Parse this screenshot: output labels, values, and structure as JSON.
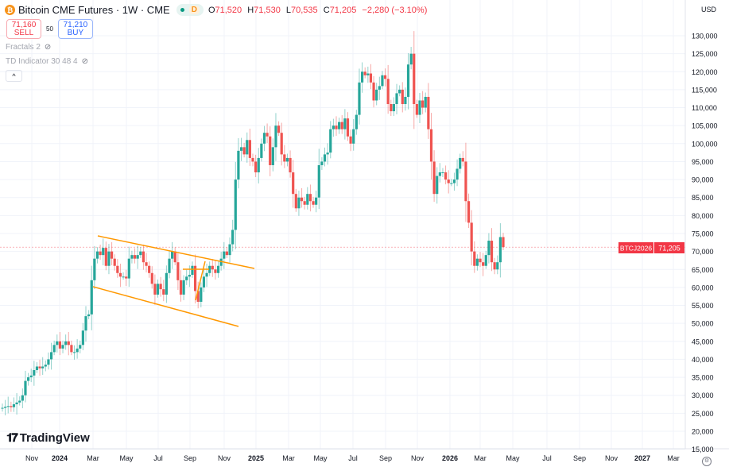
{
  "header": {
    "symbol_icon": "bitcoin-icon",
    "title": "Bitcoin CME Futures · 1W · CME",
    "badge_letter": "D",
    "o_label": "O",
    "o": "71,520",
    "h_label": "H",
    "h": "71,530",
    "l_label": "L",
    "l": "70,535",
    "c_label": "C",
    "c": "71,205",
    "change": "−2,280 (−3.10%)"
  },
  "trade": {
    "sell_price": "71,160",
    "sell_label": "SELL",
    "spread": "50",
    "buy_price": "71,210",
    "buy_label": "BUY"
  },
  "indicators": [
    {
      "label": "Fractals 2"
    },
    {
      "label": "TD Indicator 30 48 4"
    }
  ],
  "currency": "USD",
  "price_label": {
    "symbol": "BTCJ2026",
    "price": "71,205",
    "value": 71205
  },
  "brand": "TradingView",
  "colors": {
    "up": "#26a69a",
    "down": "#ef5350",
    "drawing": "#ff9800",
    "price_line": "#f23645"
  },
  "y_ticks": [
    "130,000",
    "125,000",
    "120,000",
    "115,000",
    "110,000",
    "105,000",
    "100,000",
    "95,000",
    "90,000",
    "85,000",
    "80,000",
    "75,000",
    "70,000",
    "65,000",
    "60,000",
    "55,000",
    "50,000",
    "45,000",
    "40,000",
    "35,000",
    "30,000",
    "25,000",
    "20,000",
    "15,000"
  ],
  "x_ticks": [
    {
      "label": "Nov",
      "bold": false
    },
    {
      "label": "2024",
      "bold": true
    },
    {
      "label": "Mar",
      "bold": false
    },
    {
      "label": "May",
      "bold": false
    },
    {
      "label": "Jul",
      "bold": false
    },
    {
      "label": "Sep",
      "bold": false
    },
    {
      "label": "Nov",
      "bold": false
    },
    {
      "label": "2025",
      "bold": true
    },
    {
      "label": "Mar",
      "bold": false
    },
    {
      "label": "May",
      "bold": false
    },
    {
      "label": "Jul",
      "bold": false
    },
    {
      "label": "Sep",
      "bold": false
    },
    {
      "label": "Nov",
      "bold": false
    },
    {
      "label": "2026",
      "bold": true
    },
    {
      "label": "Mar",
      "bold": false
    },
    {
      "label": "May",
      "bold": false
    },
    {
      "label": "Jul",
      "bold": false
    },
    {
      "label": "Sep",
      "bold": false
    },
    {
      "label": "Nov",
      "bold": false
    },
    {
      "label": "2027",
      "bold": true
    },
    {
      "label": "Mar",
      "bold": false
    }
  ],
  "chart_data": {
    "type": "candlestick",
    "interval": "1W",
    "ylim": [
      15000,
      132000
    ],
    "first_open": 26300,
    "closes": [
      26500,
      26800,
      27000,
      26700,
      27500,
      28000,
      28500,
      30000,
      34000,
      35000,
      35500,
      37000,
      38000,
      37500,
      38000,
      38500,
      40000,
      42000,
      44000,
      45000,
      43000,
      44000,
      45000,
      44000,
      42000,
      42000,
      43000,
      44000,
      48000,
      52000,
      52500,
      62000,
      68000,
      70000,
      69000,
      71000,
      66000,
      70000,
      68000,
      66000,
      64000,
      63000,
      63000,
      62500,
      68000,
      69000,
      68000,
      69000,
      70000,
      67000,
      66000,
      64000,
      61000,
      58000,
      61000,
      59500,
      58000,
      64000,
      68000,
      70000,
      67000,
      62000,
      58000,
      62000,
      63000,
      63500,
      66000,
      59000,
      56000,
      60000,
      63000,
      64000,
      66000,
      65000,
      64000,
      66000,
      68000,
      70000,
      69000,
      72000,
      76000,
      90000,
      98000,
      99000,
      97000,
      101000,
      96000,
      95000,
      92000,
      96000,
      100000,
      103000,
      102000,
      94000,
      99000,
      105000,
      103000,
      97000,
      95000,
      96000,
      92000,
      86000,
      82000,
      85000,
      84000,
      83000,
      86000,
      84000,
      83000,
      85000,
      94000,
      95000,
      97000,
      97500,
      104000,
      105000,
      104000,
      106000,
      104000,
      107000,
      102000,
      100000,
      104000,
      108000,
      117000,
      120000,
      119000,
      119500,
      117000,
      112000,
      115000,
      116000,
      119000,
      118000,
      111000,
      109000,
      111000,
      114000,
      115000,
      111000,
      113000,
      122000,
      125000,
      111000,
      108000,
      112000,
      110000,
      113000,
      104000,
      95000,
      86000,
      91000,
      92000,
      92000,
      90000,
      89000,
      89000,
      90000,
      93000,
      96000,
      95000,
      84000,
      78000,
      70000,
      66000,
      68000,
      67000,
      66000,
      69000,
      73000,
      67000,
      65000,
      67000,
      74000,
      71205
    ]
  }
}
